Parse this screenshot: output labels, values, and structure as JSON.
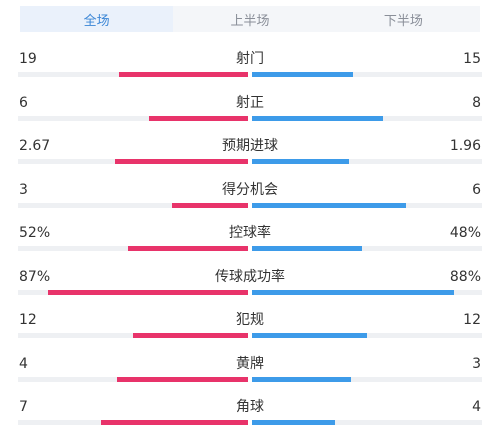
{
  "tabs": [
    {
      "label": "全场",
      "active": true
    },
    {
      "label": "上半场",
      "active": false
    },
    {
      "label": "下半场",
      "active": false
    }
  ],
  "colors": {
    "home": "#e8336a",
    "away": "#3d9be9",
    "track": "#eef0f3",
    "tab_active": "#3b86d6"
  },
  "stats": [
    {
      "label": "射门",
      "left": "19",
      "right": "15",
      "left_share": 0.56,
      "right_share": 0.44
    },
    {
      "label": "射正",
      "left": "6",
      "right": "8",
      "left_share": 0.43,
      "right_share": 0.57
    },
    {
      "label": "预期进球",
      "left": "2.67",
      "right": "1.96",
      "left_share": 0.58,
      "right_share": 0.42
    },
    {
      "label": "得分机会",
      "left": "3",
      "right": "6",
      "left_share": 0.33,
      "right_share": 0.67
    },
    {
      "label": "控球率",
      "left": "52%",
      "right": "48%",
      "left_share": 0.52,
      "right_share": 0.48
    },
    {
      "label": "传球成功率",
      "left": "87%",
      "right": "88%",
      "left_share": 0.87,
      "right_share": 0.88
    },
    {
      "label": "犯规",
      "left": "12",
      "right": "12",
      "left_share": 0.5,
      "right_share": 0.5
    },
    {
      "label": "黄牌",
      "left": "4",
      "right": "3",
      "left_share": 0.57,
      "right_share": 0.43
    },
    {
      "label": "角球",
      "left": "7",
      "right": "4",
      "left_share": 0.64,
      "right_share": 0.36
    }
  ]
}
